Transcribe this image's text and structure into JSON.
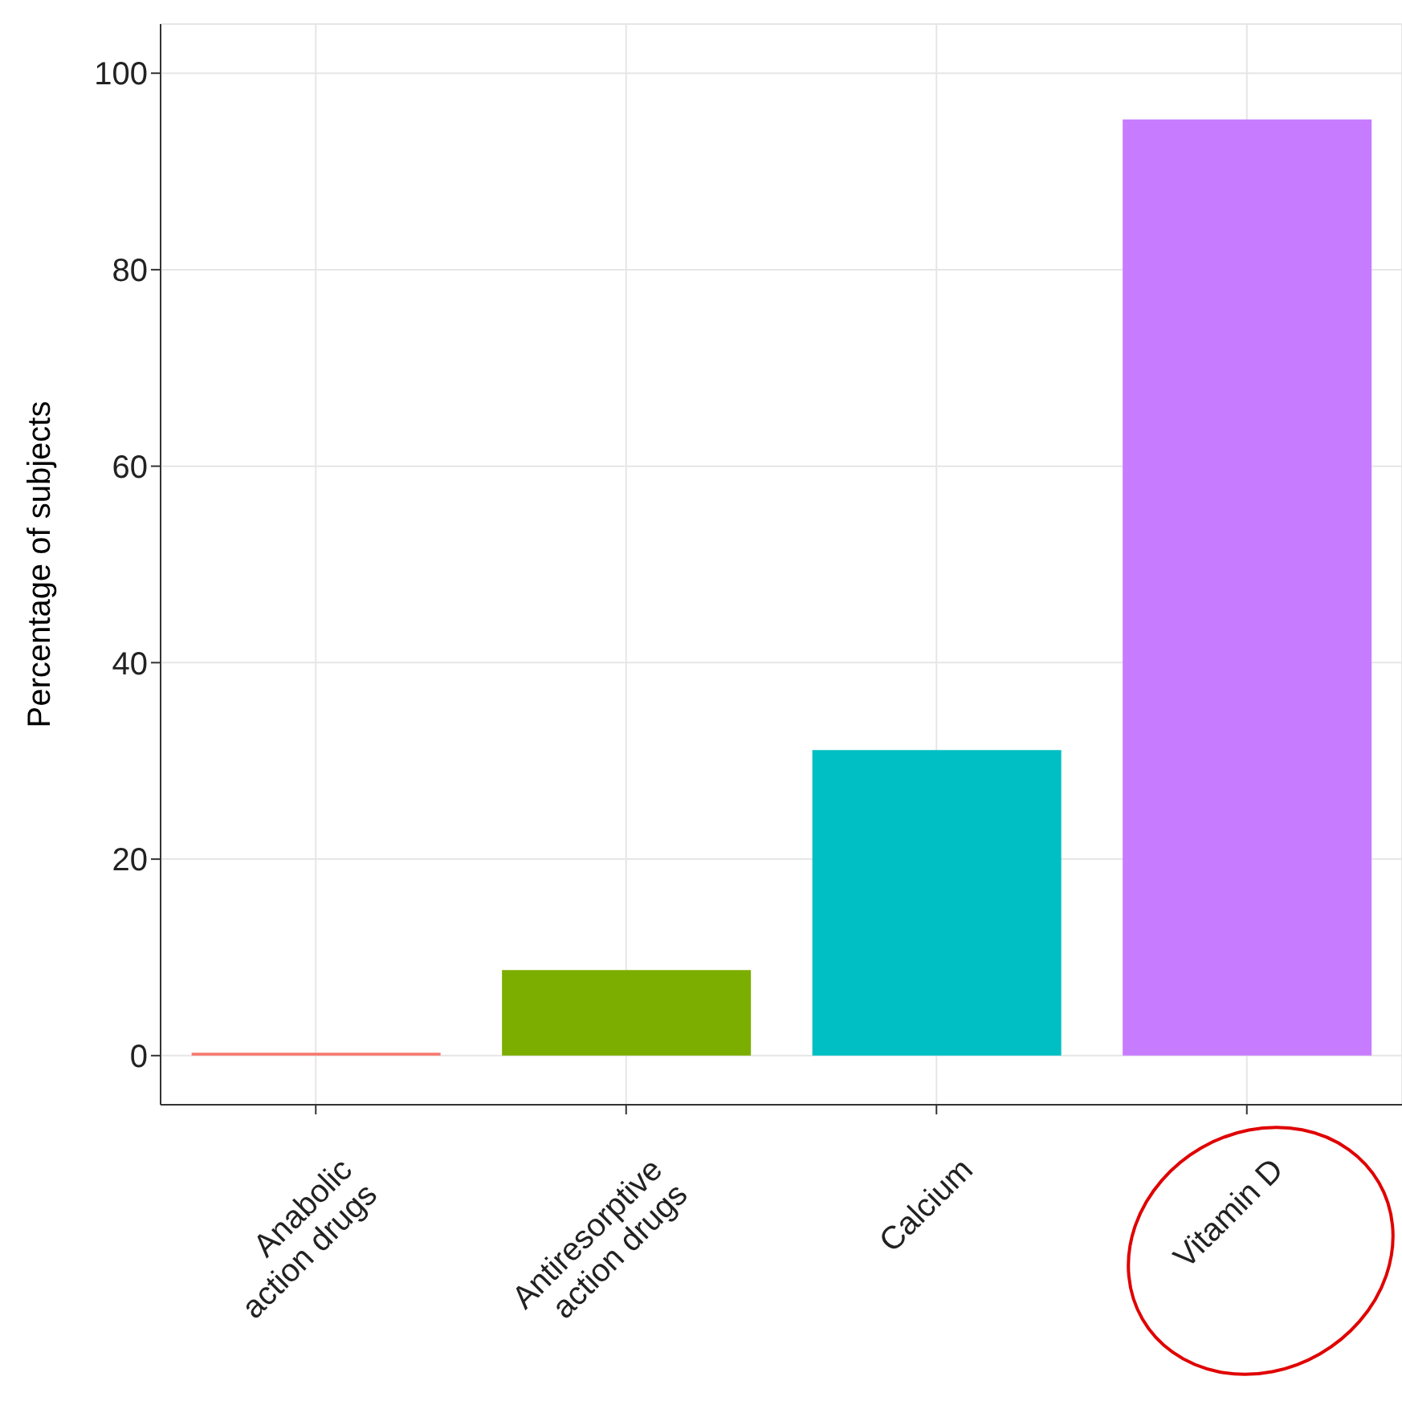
{
  "chart_data": {
    "type": "bar",
    "ylabel": "Percentage of subjects",
    "categories": [
      "Anabolic action drugs",
      "Antiresorptive action drugs",
      "Calcium",
      "Vitamin D"
    ],
    "values": [
      0.3,
      8.7,
      31.1,
      95.3
    ],
    "colors": [
      "#f8766d",
      "#7cae00",
      "#00bfc4",
      "#c77cff"
    ],
    "ylim": [
      -5,
      105
    ],
    "yticks": [
      0,
      20,
      40,
      60,
      80,
      100
    ],
    "grid": true
  }
}
